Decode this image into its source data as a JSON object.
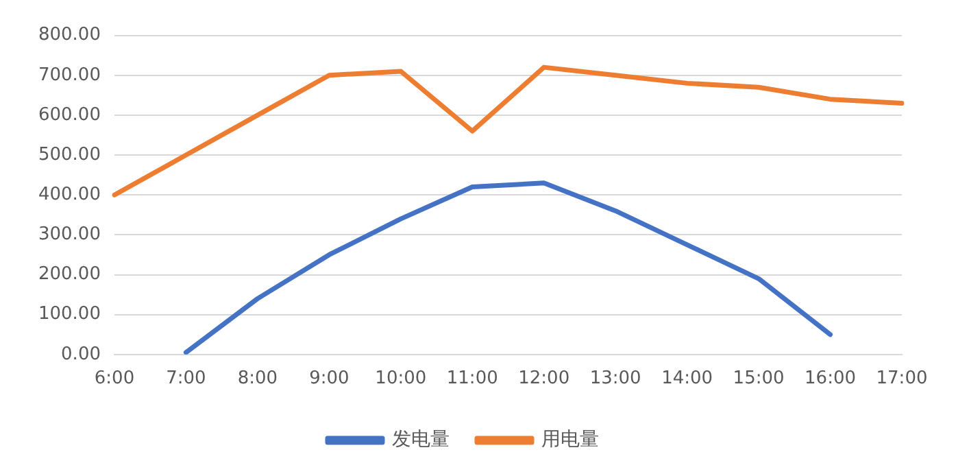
{
  "chart_data": {
    "type": "line",
    "categories": [
      "6:00",
      "7:00",
      "8:00",
      "9:00",
      "10:00",
      "11:00",
      "12:00",
      "13:00",
      "14:00",
      "15:00",
      "16:00",
      "17:00"
    ],
    "series": [
      {
        "name": "发电量",
        "color": "#4472c4",
        "values": [
          null,
          5,
          140,
          250,
          340,
          420,
          430,
          360,
          275,
          190,
          50,
          null
        ]
      },
      {
        "name": "用电量",
        "color": "#ed7d31",
        "values": [
          400,
          500,
          600,
          700,
          710,
          560,
          720,
          700,
          680,
          670,
          640,
          630
        ]
      }
    ],
    "ylim": [
      0,
      800
    ],
    "yticks": [
      {
        "value": 0,
        "label": "0.00"
      },
      {
        "value": 100,
        "label": "100.00"
      },
      {
        "value": 200,
        "label": "200.00"
      },
      {
        "value": 300,
        "label": "300.00"
      },
      {
        "value": 400,
        "label": "400.00"
      },
      {
        "value": 500,
        "label": "500.00"
      },
      {
        "value": 600,
        "label": "600.00"
      },
      {
        "value": 700,
        "label": "700.00"
      },
      {
        "value": 800,
        "label": "800.00"
      }
    ],
    "grid": "y",
    "legend": "bottom",
    "marker": "none",
    "line_style": "solid"
  }
}
